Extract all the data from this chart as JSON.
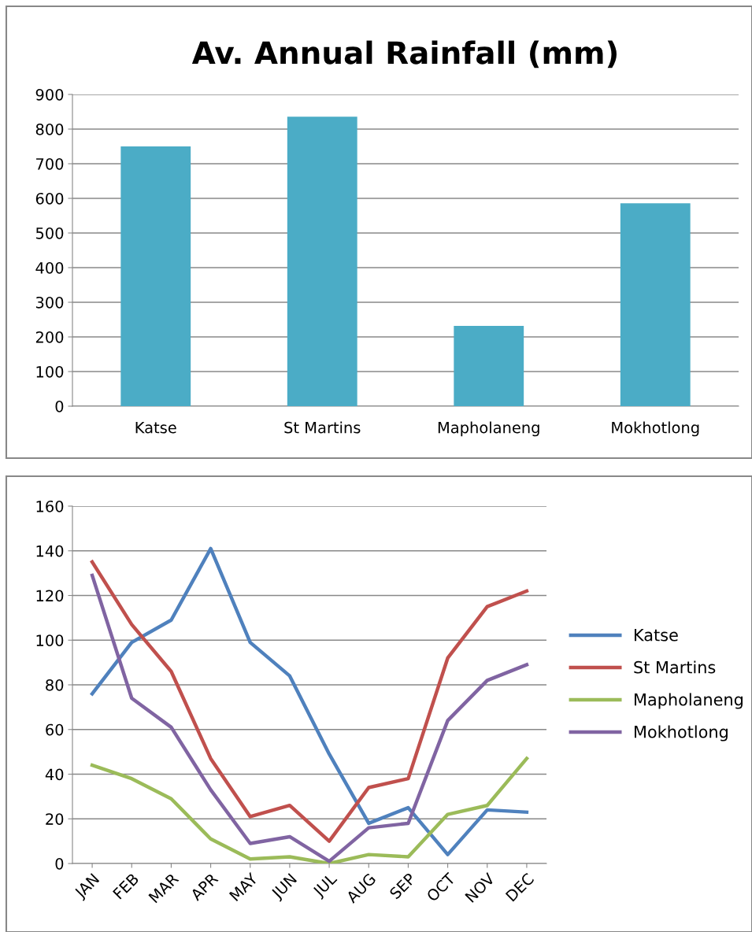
{
  "chart_data": [
    {
      "type": "bar",
      "title": "Av. Annual Rainfall (mm)",
      "categories": [
        "Katse",
        "St Martins",
        "Mapholaneng",
        "Mokhotlong"
      ],
      "values": [
        750,
        836,
        232,
        586
      ],
      "color": "#4bacc6",
      "ylim": [
        0,
        900
      ],
      "yticks": [
        0,
        100,
        200,
        300,
        400,
        500,
        600,
        700,
        800,
        900
      ],
      "grid": "y",
      "legend": false
    },
    {
      "type": "line",
      "categories": [
        "JAN",
        "FEB",
        "MAR",
        "APR",
        "MAY",
        "JUN",
        "JUL",
        "AUG",
        "SEP",
        "OCT",
        "NOV",
        "DEC"
      ],
      "ylim": [
        0,
        160
      ],
      "yticks": [
        0,
        20,
        40,
        60,
        80,
        100,
        120,
        140,
        160
      ],
      "grid": "y",
      "legend": "right",
      "marker": "none",
      "line_style": "solid",
      "series": [
        {
          "name": "Katse",
          "color": "#4f81bd",
          "values": [
            76,
            99,
            109,
            141,
            99,
            84,
            49,
            18,
            25,
            4,
            24,
            23
          ]
        },
        {
          "name": "St Martins",
          "color": "#c0504d",
          "values": [
            135,
            107,
            86,
            47,
            21,
            26,
            10,
            34,
            38,
            92,
            115,
            122
          ]
        },
        {
          "name": "Mapholaneng",
          "color": "#9bbb59",
          "values": [
            44,
            38,
            29,
            11,
            2,
            3,
            0,
            4,
            3,
            22,
            26,
            47
          ]
        },
        {
          "name": "Mokhotlong",
          "color": "#8064a2",
          "values": [
            129,
            74,
            61,
            33,
            9,
            12,
            1,
            16,
            18,
            64,
            82,
            89
          ]
        }
      ]
    }
  ]
}
